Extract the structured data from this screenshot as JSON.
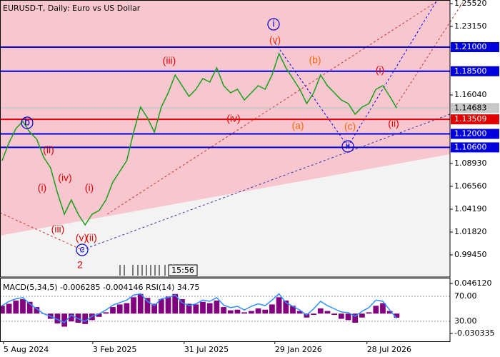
{
  "chart_data": [
    {
      "type": "line",
      "title": "EURUSD-T, Daily:  Euro vs US Dollar",
      "color": "#18a018",
      "values": [
        1.0922,
        1.1108,
        1.1256,
        1.133,
        1.1219,
        1.1145,
        1.0959,
        1.0848,
        1.0589,
        1.0367,
        1.0515,
        1.0367,
        1.0256,
        1.0367,
        1.0404,
        1.0515,
        1.07,
        1.0811,
        1.0922,
        1.1219,
        1.1478,
        1.1367,
        1.1219,
        1.1478,
        1.1626,
        1.1811,
        1.17,
        1.1589,
        1.1663,
        1.1774,
        1.1737,
        1.1885,
        1.17,
        1.1626,
        1.1663,
        1.1552,
        1.1626,
        1.17,
        1.1663,
        1.1811,
        1.2033,
        1.1885,
        1.1774,
        1.1663,
        1.1515,
        1.1626,
        1.1811,
        1.17,
        1.1626,
        1.1552,
        1.1515,
        1.1404,
        1.1478,
        1.1515,
        1.1663,
        1.17,
        1.1589,
        1.14683
      ],
      "xlim": [
        -0.3,
        64.7
      ],
      "xticks": [
        {
          "value": 0.2,
          "label": "5 Aug 2024"
        },
        {
          "value": 13.1,
          "label": "3 Feb 2025"
        },
        {
          "value": 26.3,
          "label": "31 Jul 2025"
        },
        {
          "value": 39.4,
          "label": "29 Jan 2026"
        },
        {
          "value": 52.7,
          "label": "28 Jul 2026"
        }
      ],
      "ylim": [
        0.9715,
        1.2589
      ],
      "yticks": [
        {
          "value": 1.2552,
          "label": "1.25520"
        },
        {
          "value": 1.2315,
          "label": "1.23150"
        },
        {
          "value": 1.1604,
          "label": "1.16040"
        },
        {
          "value": 1.0893,
          "label": "1.08930"
        },
        {
          "value": 1.0656,
          "label": "1.06560"
        },
        {
          "value": 1.0419,
          "label": "1.04190"
        },
        {
          "value": 1.0182,
          "label": "1.01820"
        },
        {
          "value": 0.9945,
          "label": "0.99450"
        }
      ],
      "levels": [
        {
          "value": 1.21,
          "label": "1.21000",
          "color": "#0000dd"
        },
        {
          "value": 1.185,
          "label": "1.18500",
          "color": "#0000dd"
        },
        {
          "value": 1.14683,
          "label": "1.14683",
          "color": "#c8c8c8"
        },
        {
          "value": 1.13509,
          "label": "1.13509",
          "color": "#e00000"
        },
        {
          "value": 1.12,
          "label": "1.12000",
          "color": "#0000dd"
        },
        {
          "value": 1.106,
          "label": "1.10600",
          "color": "#0000dd"
        }
      ],
      "annotations": [
        {
          "text": "i",
          "color": "#0000cc",
          "circled": true
        },
        {
          "text": "(v)",
          "color": "#ff3300",
          "circled": false
        },
        {
          "text": "(iii)",
          "color": "#e00000",
          "circled": false
        },
        {
          "text": "(iv)",
          "color": "#e00000",
          "circled": false
        },
        {
          "text": "(a)",
          "color": "#ff6600",
          "circled": false
        },
        {
          "text": "(b)",
          "color": "#ff6600",
          "circled": false
        },
        {
          "text": "(c)",
          "color": "#ff6600",
          "circled": false
        },
        {
          "text": "ii",
          "color": "#0000cc",
          "circled": true
        },
        {
          "text": "(i)",
          "color": "#e00000",
          "circled": false
        },
        {
          "text": "(ii)",
          "color": "#e00000",
          "circled": false
        },
        {
          "text": "b",
          "color": "#0000cc",
          "circled": true
        },
        {
          "text": "(ii)",
          "color": "#e00000",
          "circled": false
        },
        {
          "text": "(iv)",
          "color": "#e00000",
          "circled": false
        },
        {
          "text": "(i)",
          "color": "#e00000",
          "circled": false
        },
        {
          "text": "(i)",
          "color": "#e00000",
          "circled": false
        },
        {
          "text": "(iii)",
          "color": "#e00000",
          "circled": false
        },
        {
          "text": "(v)",
          "color": "#e00000",
          "circled": false
        },
        {
          "text": "(ii)",
          "color": "#e00000",
          "circled": false
        },
        {
          "text": "c",
          "color": "#0000cc",
          "circled": true
        },
        {
          "text": "2",
          "color": "#e00000",
          "circled": false
        }
      ],
      "time_label": "15:56"
    },
    {
      "type": "indicator",
      "title": "MACD(5,34,5) -0.006285 -0.004146 RSI(14) 34.75",
      "series": [
        {
          "color": "#800080",
          "values": [
            0.012,
            0.015,
            0.02,
            0.022,
            0.018,
            0.01,
            0.0,
            -0.008,
            -0.015,
            -0.02,
            -0.012,
            -0.014,
            -0.016,
            -0.01,
            -0.005,
            0.002,
            0.01,
            0.014,
            0.016,
            0.025,
            0.03,
            0.024,
            0.015,
            0.022,
            0.026,
            0.03,
            0.022,
            0.015,
            0.014,
            0.018,
            0.016,
            0.02,
            0.01,
            0.005,
            0.006,
            0.002,
            0.004,
            0.008,
            0.006,
            0.014,
            0.025,
            0.02,
            0.012,
            0.004,
            -0.006,
            -0.002,
            0.008,
            0.004,
            -0.002,
            -0.008,
            -0.01,
            -0.014,
            -0.006,
            0.002,
            0.012,
            0.016,
            0.004,
            -0.006285
          ]
        },
        {
          "color": "#2f8fff",
          "axis": "y2",
          "values": [
            55,
            62,
            66,
            68,
            58,
            50,
            42,
            38,
            33,
            28,
            40,
            34,
            30,
            38,
            42,
            48,
            56,
            60,
            64,
            72,
            74,
            62,
            55,
            66,
            68,
            72,
            60,
            55,
            58,
            64,
            62,
            68,
            56,
            52,
            54,
            48,
            54,
            58,
            55,
            64,
            74,
            60,
            54,
            48,
            40,
            50,
            62,
            55,
            50,
            45,
            44,
            38,
            46,
            52,
            64,
            62,
            48,
            34.75
          ]
        }
      ],
      "ylim": [
        -0.0424,
        0.0538
      ],
      "yticks": [
        {
          "value": 0.04612,
          "label": "0.046120"
        },
        -0.030335
      ],
      "y2lim": [
        -2,
        98.6
      ],
      "y2ticks": [
        {
          "value": 70,
          "label": "70.00"
        },
        {
          "value": 30,
          "label": "30.00"
        }
      ]
    }
  ]
}
